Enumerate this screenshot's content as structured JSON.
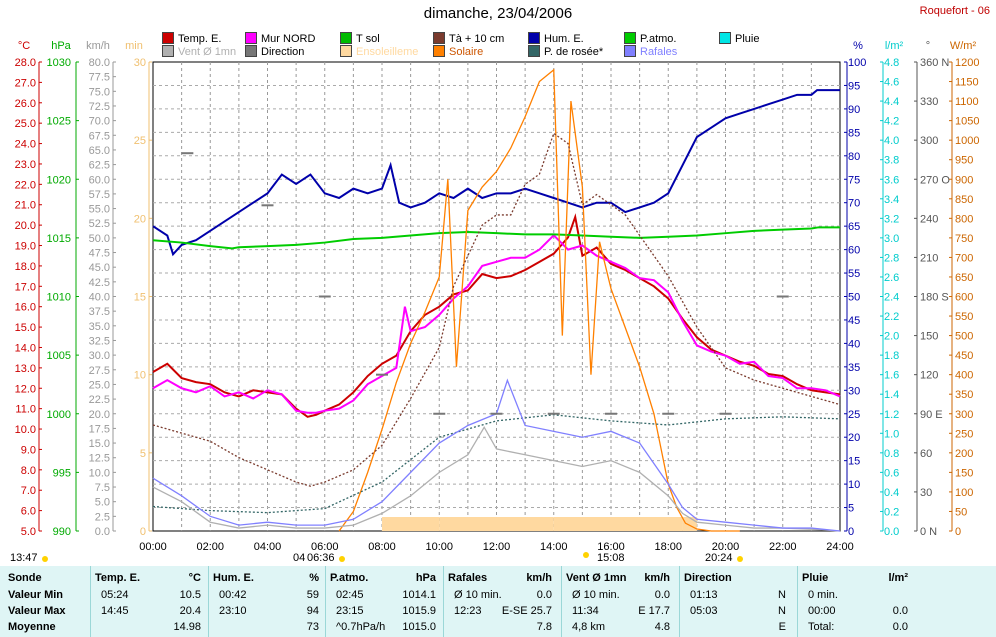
{
  "title": "dimanche, 23/04/2006",
  "station": "Roquefort - 06",
  "legend": [
    {
      "label": "Temp. E.",
      "color": "#cc0000"
    },
    {
      "label": "Mur NORD",
      "color": "#ff00ff"
    },
    {
      "label": "T sol",
      "color": "#00bb00"
    },
    {
      "label": "Tà + 10 cm",
      "color": "#7a3b2e"
    },
    {
      "label": "Hum. E.",
      "color": "#0000aa"
    },
    {
      "label": "P.atmo.",
      "color": "#00cc00"
    },
    {
      "label": "Pluie",
      "color": "#00e5e5"
    },
    {
      "label": "Vent Ø 1mn",
      "color": "#b0b0b0"
    },
    {
      "label": "Direction",
      "color": "#777777"
    },
    {
      "label": "Ensoleilleme",
      "color": "#ffd9a0"
    },
    {
      "label": "Solaire",
      "color": "#ff8000"
    },
    {
      "label": "P. de rosée*",
      "color": "#336666"
    },
    {
      "label": "Rafales",
      "color": "#8080ff"
    }
  ],
  "axes": {
    "temp": {
      "unit": "°C",
      "ticks": [
        "28.0",
        "27.0",
        "26.0",
        "25.0",
        "24.0",
        "23.0",
        "22.0",
        "21.0",
        "20.0",
        "19.0",
        "18.0",
        "17.0",
        "16.0",
        "15.0",
        "14.0",
        "13.0",
        "12.0",
        "11.0",
        "10.0",
        "9.0",
        "8.0",
        "7.0",
        "6.0",
        "5.0"
      ],
      "color": "#cc0000"
    },
    "press": {
      "unit": "hPa",
      "ticks": [
        "1030",
        "1025",
        "1020",
        "1015",
        "1010",
        "1005",
        "1000",
        "995",
        "990"
      ],
      "color": "#00aa00"
    },
    "wind": {
      "unit": "km/h",
      "ticks": [
        "80.0",
        "77.5",
        "75.0",
        "72.5",
        "70.0",
        "67.5",
        "65.0",
        "62.5",
        "60.0",
        "57.5",
        "55.0",
        "52.5",
        "50.0",
        "47.5",
        "45.0",
        "42.5",
        "40.0",
        "37.5",
        "35.0",
        "32.5",
        "30.0",
        "27.5",
        "25.0",
        "22.5",
        "20.0",
        "17.5",
        "15.0",
        "12.5",
        "10.0",
        "7.5",
        "5.0",
        "2.5",
        "0.0"
      ],
      "color": "#999999"
    },
    "min": {
      "unit": "min",
      "ticks": [
        "30",
        "25",
        "20",
        "15",
        "10",
        "5",
        "0"
      ],
      "color": "#f0c070"
    },
    "hum": {
      "unit": "%",
      "ticks": [
        "100",
        "95",
        "90",
        "85",
        "80",
        "75",
        "70",
        "65",
        "60",
        "55",
        "50",
        "45",
        "40",
        "35",
        "30",
        "25",
        "20",
        "15",
        "10",
        "5",
        "0"
      ],
      "color": "#0000aa"
    },
    "rain": {
      "unit": "l/m²",
      "ticks": [
        "4.8",
        "4.6",
        "4.4",
        "4.2",
        "4.0",
        "3.8",
        "3.6",
        "3.4",
        "3.2",
        "3.0",
        "2.8",
        "2.6",
        "2.4",
        "2.2",
        "2.0",
        "1.8",
        "1.6",
        "1.4",
        "1.2",
        "1.0",
        "0.8",
        "0.6",
        "0.4",
        "0.2",
        "0.0"
      ],
      "color": "#00cccc"
    },
    "dir": {
      "unit": "°",
      "ticks": [
        "360 N",
        "330",
        "300",
        "270 O",
        "240",
        "210",
        "180 S",
        "150",
        "120",
        "90 E",
        "60",
        "30",
        "0 N"
      ],
      "color": "#555555"
    },
    "solar": {
      "unit": "W/m²",
      "ticks": [
        "1200",
        "1150",
        "1100",
        "1050",
        "1000",
        "950",
        "900",
        "850",
        "800",
        "750",
        "700",
        "650",
        "600",
        "550",
        "500",
        "450",
        "400",
        "350",
        "300",
        "250",
        "200",
        "150",
        "100",
        "50",
        "0"
      ],
      "color": "#cc6600"
    },
    "x_ticks": [
      "00:00",
      "02:00",
      "04:00",
      "06:00",
      "08:00",
      "10:00",
      "12:00",
      "14:00",
      "16:00",
      "18:00",
      "20:00",
      "22:00",
      "24:00"
    ]
  },
  "marks": {
    "moonrise": "13:47",
    "sunrise_a": "04",
    "sunrise": "06:36",
    "noon": "15:08",
    "sunset": "20:24"
  },
  "stats": {
    "sonde": {
      "header": "Sonde",
      "rows": [
        "Valeur Min",
        "Valeur Max",
        "Moyenne"
      ]
    },
    "temp": {
      "header": "Temp. E.",
      "unit": "°C",
      "rows": [
        [
          "05:24",
          "10.5"
        ],
        [
          "14:45",
          "20.4"
        ],
        [
          "",
          "14.98"
        ]
      ]
    },
    "hum": {
      "header": "Hum. E.",
      "unit": "%",
      "rows": [
        [
          "00:42",
          "59"
        ],
        [
          "23:10",
          "94"
        ],
        [
          "",
          "73"
        ]
      ]
    },
    "patmo": {
      "header": "P.atmo.",
      "unit": "hPa",
      "rows": [
        [
          "02:45",
          "1014.1"
        ],
        [
          "23:15",
          "1015.9"
        ],
        [
          "^0.7hPa/h",
          "1015.0"
        ]
      ]
    },
    "rafales": {
      "header": "Rafales",
      "unit": "km/h",
      "rows": [
        [
          "Ø 10 min.",
          "0.0"
        ],
        [
          "12:23",
          "E-SE 25.7"
        ],
        [
          "",
          "7.8"
        ]
      ]
    },
    "vent": {
      "header": "Vent Ø 1mn",
      "unit": "km/h",
      "rows": [
        [
          "Ø 10 min.",
          "0.0"
        ],
        [
          "11:34",
          "E 17.7"
        ],
        [
          "4,8 km",
          "4.8"
        ]
      ]
    },
    "direction": {
      "header": "Direction",
      "unit": "",
      "rows": [
        [
          "01:13",
          "N"
        ],
        [
          "05:03",
          "N"
        ],
        [
          "",
          "E"
        ]
      ]
    },
    "pluie": {
      "header": "Pluie",
      "unit": "l/m²",
      "rows": [
        [
          "0 min.",
          ""
        ],
        [
          "00:00",
          "0.0"
        ],
        [
          "Total:",
          "0.0"
        ]
      ]
    }
  },
  "chart_data": {
    "type": "line",
    "title": "dimanche, 23/04/2006",
    "x_unit": "hour",
    "xlim": [
      0,
      24
    ],
    "series": [
      {
        "name": "Temp. E.",
        "axis": "temp",
        "color": "#cc0000",
        "x": [
          0,
          0.5,
          1,
          1.5,
          2,
          2.5,
          3,
          3.5,
          4,
          4.5,
          5,
          5.4,
          5.7,
          6,
          6.5,
          7,
          7.5,
          8,
          8.5,
          9,
          9.5,
          10,
          10.5,
          11,
          11.5,
          12,
          12.5,
          13,
          13.5,
          14,
          14.5,
          14.75,
          15,
          15.5,
          16,
          16.5,
          17,
          17.5,
          18,
          18.5,
          19,
          19.5,
          20,
          20.5,
          21,
          21.5,
          22,
          22.5,
          23,
          23.5,
          24
        ],
        "y": [
          12.8,
          13.2,
          12.5,
          12.3,
          12.2,
          11.8,
          11.6,
          11.9,
          11.8,
          11.7,
          11.0,
          10.6,
          10.7,
          10.9,
          11.2,
          11.8,
          12.6,
          13.2,
          13.6,
          14.8,
          15.6,
          16.0,
          16.6,
          16.8,
          17.6,
          17.4,
          17.5,
          17.8,
          18.2,
          18.6,
          19.4,
          20.4,
          18.5,
          18.9,
          18.1,
          17.8,
          17.4,
          17.0,
          16.4,
          15.4,
          14.5,
          13.9,
          13.6,
          13.3,
          13.1,
          12.7,
          12.6,
          12.2,
          11.9,
          11.8,
          11.7
        ]
      },
      {
        "name": "Mur NORD",
        "axis": "temp",
        "color": "#ff00ff",
        "x": [
          0,
          0.5,
          1,
          1.5,
          2,
          2.5,
          3,
          3.5,
          4,
          4.5,
          5,
          5.4,
          5.7,
          6,
          6.5,
          7,
          7.5,
          8,
          8.5,
          8.8,
          9,
          9.5,
          10,
          10.5,
          11,
          11.5,
          12,
          12.5,
          13,
          13.5,
          14,
          14.5,
          15,
          15.5,
          16,
          16.5,
          17,
          17.5,
          18,
          18.5,
          19,
          19.5,
          20,
          20.5,
          21,
          21.5,
          22,
          22.5,
          23,
          23.5,
          24
        ],
        "y": [
          12.0,
          12.4,
          12.0,
          11.8,
          12.1,
          11.6,
          11.8,
          11.5,
          11.9,
          11.7,
          10.9,
          10.8,
          10.8,
          10.9,
          11.0,
          11.4,
          12.2,
          12.6,
          13.0,
          16.0,
          14.8,
          15.0,
          15.6,
          16.4,
          17.0,
          18.0,
          18.2,
          18.4,
          18.4,
          18.8,
          19.5,
          18.8,
          19.0,
          18.5,
          18.2,
          17.9,
          17.4,
          17.3,
          16.7,
          15.3,
          14.1,
          13.8,
          13.6,
          13.2,
          13.3,
          12.6,
          12.5,
          12.0,
          12.0,
          11.9,
          11.6
        ]
      },
      {
        "name": "Hum. E.",
        "axis": "hum",
        "color": "#0000aa",
        "x": [
          0,
          0.5,
          0.7,
          1,
          1.5,
          2,
          2.5,
          3,
          3.5,
          4,
          4.5,
          5,
          5.5,
          6,
          6.5,
          7,
          7.5,
          8,
          8.3,
          8.6,
          9,
          9.5,
          10,
          10.5,
          11,
          11.5,
          12,
          12.5,
          13,
          13.5,
          14,
          14.5,
          15,
          15.5,
          16,
          16.5,
          17,
          17.5,
          18,
          18.5,
          19,
          19.5,
          20,
          20.5,
          21,
          21.5,
          22,
          22.5,
          23,
          23.2,
          24
        ],
        "y": [
          65,
          63,
          59,
          61,
          62,
          64,
          66,
          68,
          70,
          72,
          76,
          74,
          76,
          72,
          71,
          73,
          72,
          73,
          78,
          70,
          69,
          70,
          72,
          71,
          73,
          71,
          72,
          72,
          73,
          72,
          71,
          70,
          69,
          70,
          70,
          68,
          69,
          70,
          72,
          78,
          84,
          86,
          88,
          89,
          90,
          91,
          92,
          93,
          93,
          94,
          94
        ]
      },
      {
        "name": "P.atmo.",
        "axis": "press",
        "color": "#00cc00",
        "x": [
          0,
          1,
          2,
          2.75,
          3,
          4,
          5,
          6,
          7,
          8,
          9,
          10,
          11,
          12,
          13,
          14,
          15,
          16,
          17,
          18,
          19,
          20,
          21,
          22,
          23,
          23.25,
          24
        ],
        "y": [
          1014.8,
          1014.6,
          1014.3,
          1014.1,
          1014.2,
          1014.3,
          1014.4,
          1014.6,
          1014.9,
          1015.0,
          1015.2,
          1015.4,
          1015.5,
          1015.4,
          1015.3,
          1015.3,
          1015.2,
          1015.1,
          1015.0,
          1015.1,
          1015.2,
          1015.4,
          1015.6,
          1015.7,
          1015.8,
          1015.9,
          1015.9
        ]
      },
      {
        "name": "Solaire",
        "axis": "solar",
        "color": "#ff8000",
        "x": [
          6.5,
          7,
          7.5,
          8,
          8.5,
          9,
          9.5,
          10,
          10.3,
          10.6,
          11,
          11.5,
          12,
          12.5,
          13,
          13.5,
          14,
          14.3,
          14.6,
          15,
          15.3,
          15.6,
          16,
          16.5,
          17,
          17.5,
          18,
          18.3,
          18.6,
          19,
          19.5,
          20,
          20.5
        ],
        "y": [
          0,
          50,
          150,
          260,
          380,
          480,
          560,
          650,
          900,
          420,
          820,
          880,
          920,
          980,
          1060,
          1150,
          1180,
          500,
          1100,
          880,
          400,
          740,
          620,
          520,
          420,
          300,
          120,
          60,
          20,
          5,
          0,
          0,
          0
        ]
      },
      {
        "name": "Tà + 10 cm",
        "axis": "temp",
        "color": "#7a3b2e",
        "x": [
          0,
          1,
          2,
          3,
          4,
          5,
          5.5,
          6,
          7,
          8,
          9,
          10,
          10.5,
          11,
          11.5,
          12,
          12.5,
          13,
          13.5,
          14,
          14.5,
          15,
          15.5,
          16,
          16.5,
          17,
          18,
          19,
          20,
          21,
          22,
          23,
          24
        ],
        "y": [
          10.2,
          9.8,
          9.4,
          8.6,
          8.0,
          7.4,
          7.2,
          7.4,
          8.0,
          9.2,
          11.5,
          14.0,
          17.0,
          18.5,
          20.0,
          20.5,
          20.5,
          22.0,
          22.5,
          24.5,
          24.0,
          21.0,
          21.5,
          21.0,
          20.5,
          19.5,
          17.5,
          15.0,
          13.0,
          12.4,
          12.0,
          11.6,
          11.2
        ]
      },
      {
        "name": "P. de rosée*",
        "axis": "temp",
        "color": "#336666",
        "x": [
          0,
          2,
          4,
          6,
          8,
          10,
          12,
          14,
          16,
          18,
          20,
          22,
          24
        ],
        "y": [
          6.2,
          6.0,
          5.9,
          6.1,
          7.4,
          9.6,
          10.4,
          10.7,
          10.4,
          10.2,
          10.5,
          10.6,
          10.5
        ]
      },
      {
        "name": "Vent Ø 1mn",
        "axis": "wind",
        "color": "#b0b0b0",
        "x": [
          0,
          1,
          2,
          3,
          4,
          5,
          6,
          7,
          8,
          9,
          10,
          11,
          11.57,
          12,
          13,
          14,
          15,
          16,
          17,
          18,
          18.5,
          19,
          20,
          21,
          22,
          23,
          24
        ],
        "y": [
          7.5,
          5,
          1.5,
          0.5,
          1,
          0.5,
          0.5,
          1,
          3,
          6,
          10,
          13,
          17.7,
          14,
          13,
          12,
          11,
          12,
          10,
          6,
          3,
          1.5,
          1,
          0.5,
          0.5,
          0.3,
          0
        ]
      },
      {
        "name": "Rafales",
        "axis": "wind",
        "color": "#8080ff",
        "x": [
          0,
          1,
          2,
          3,
          4,
          5,
          6,
          7,
          8,
          9,
          10,
          11,
          12,
          12.38,
          13,
          14,
          15,
          16,
          17,
          18,
          18.5,
          19,
          20,
          21,
          22,
          23,
          24
        ],
        "y": [
          9,
          6,
          2.5,
          1,
          1.5,
          1,
          1,
          2,
          5,
          10,
          15,
          18,
          20,
          25.7,
          18,
          17,
          16,
          17,
          15,
          8,
          4,
          2,
          1.5,
          1,
          0.5,
          0.5,
          0
        ]
      },
      {
        "name": "Ensoleilleme",
        "axis": "min",
        "color": "#ffd9a0",
        "x": [
          0,
          7.5,
          8,
          10,
          12,
          14,
          16,
          18.5,
          19,
          24
        ],
        "y": [
          0,
          0,
          1,
          1,
          1,
          1,
          1,
          1,
          0,
          0
        ]
      },
      {
        "name": "Direction",
        "axis": "dir",
        "color": "#777777",
        "x": [
          1.2,
          4,
          6,
          8,
          10,
          12,
          14,
          16,
          18,
          20,
          22
        ],
        "y": [
          290,
          250,
          180,
          120,
          90,
          90,
          90,
          90,
          90,
          90,
          180
        ]
      }
    ]
  }
}
